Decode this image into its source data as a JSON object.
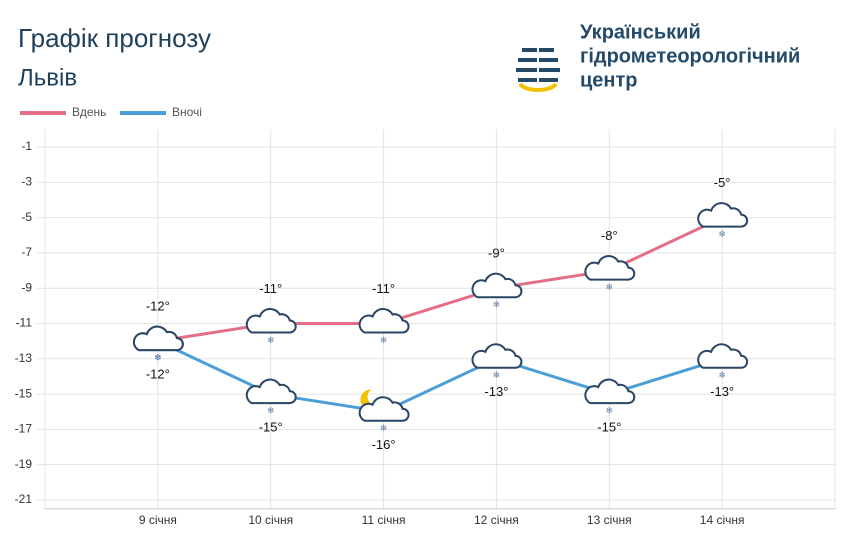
{
  "chart_data": {
    "type": "line",
    "title": "Графік прогнозу",
    "subtitle": "Львів",
    "categories": [
      "9 січня",
      "10 січня",
      "11 січня",
      "12 січня",
      "13 січня",
      "14 січня"
    ],
    "series": [
      {
        "name": "Вдень",
        "color": "#e46f84",
        "values": [
          -12,
          -11,
          -11,
          -9,
          -8,
          -5
        ],
        "value_labels": [
          "-12°",
          "-11°",
          "-11°",
          "-9°",
          "-8°",
          "-5°"
        ]
      },
      {
        "name": "Вночі",
        "color": "#4a9fd6",
        "values": [
          -12,
          -15,
          -16,
          -13,
          -15,
          -13
        ],
        "value_labels": [
          "-12°",
          "-15°",
          "-16°",
          "-13°",
          "-15°",
          "-13°"
        ]
      }
    ],
    "ylim": [
      -21.5,
      0
    ],
    "yticks": [
      -1,
      -3,
      -5,
      -7,
      -9,
      -11,
      -13,
      -15,
      -17,
      -19,
      -21
    ],
    "grid": true,
    "legend": "top-left"
  },
  "logo": {
    "lines": [
      "Український",
      "гідрометеорологічний",
      "центр"
    ]
  }
}
